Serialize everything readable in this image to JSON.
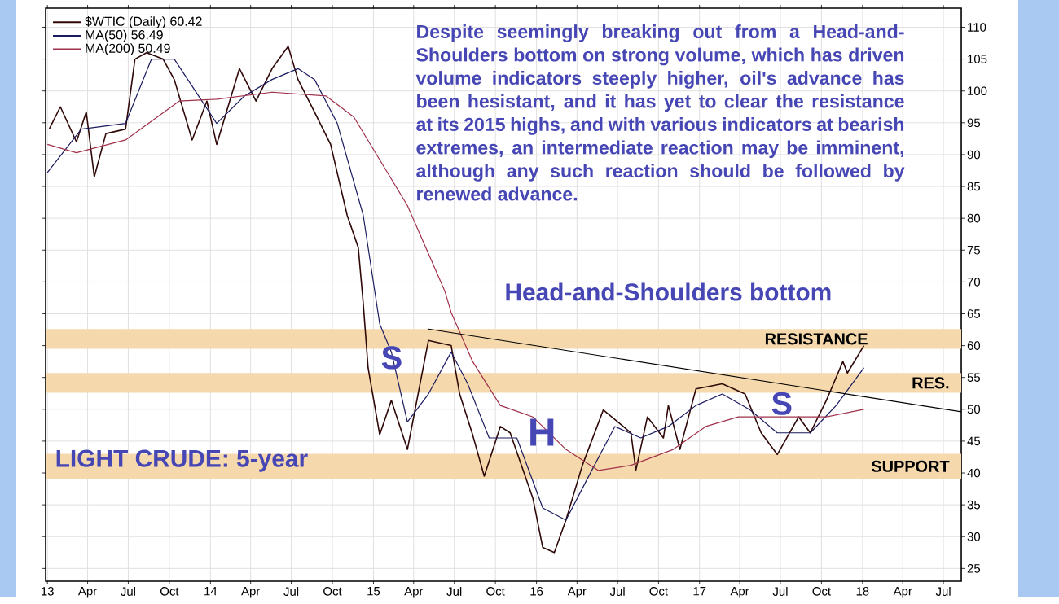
{
  "chart_data": {
    "type": "line",
    "series": [
      {
        "name": "$WTIC (Daily) 60.42",
        "color": "#300808",
        "x": [
          "2013-01-05",
          "2013-01-30",
          "2013-03-07",
          "2013-03-29",
          "2013-04-16",
          "2013-05-12",
          "2013-06-25",
          "2013-07-16",
          "2013-08-11",
          "2013-09-17",
          "2013-10-12",
          "2013-11-21",
          "2013-12-24",
          "2014-01-15",
          "2014-03-07",
          "2014-04-13",
          "2014-05-19",
          "2014-06-24",
          "2014-07-16",
          "2014-08-22",
          "2014-09-27",
          "2014-11-03",
          "2014-11-28",
          "2014-12-09",
          "2014-12-20",
          "2015-01-15",
          "2015-02-10",
          "2015-03-18",
          "2015-05-04",
          "2015-06-24",
          "2015-07-13",
          "2015-08-11",
          "2015-09-06",
          "2015-10-12",
          "2015-11-03",
          "2015-12-24",
          "2016-01-15",
          "2016-02-10",
          "2016-03-07",
          "2016-04-13",
          "2016-05-30",
          "2016-07-31",
          "2016-08-11",
          "2016-09-06",
          "2016-10-12",
          "2016-10-23",
          "2016-11-18",
          "2016-12-24",
          "2017-02-21",
          "2017-04-13",
          "2017-05-19",
          "2017-06-24",
          "2017-08-11",
          "2017-09-06",
          "2017-10-12",
          "2017-11-18",
          "2017-11-28",
          "2018-01-04"
        ],
        "values": [
          94,
          97.5,
          92,
          96.7,
          86.5,
          93.3,
          94,
          105,
          106,
          105,
          101.8,
          92.3,
          98.4,
          91.6,
          103.5,
          98.4,
          103.5,
          107,
          101.8,
          96.7,
          91.6,
          80.5,
          75.4,
          66.7,
          56.5,
          46,
          51.4,
          43.7,
          60.8,
          60,
          52.4,
          46,
          39.5,
          47.3,
          46.3,
          36,
          28.3,
          27.5,
          32.6,
          41.2,
          49.9,
          46.3,
          40.4,
          48.8,
          45.5,
          50.6,
          43.7,
          53.2,
          54,
          52.4,
          46.3,
          42.9,
          48.8,
          46.3,
          51.4,
          57.5,
          55.7,
          60
        ]
      },
      {
        "name": "MA(50) 56.49",
        "color": "#1a1a5e",
        "x": [
          "2013-01-01",
          "2013-03-18",
          "2013-06-25",
          "2013-08-22",
          "2013-10-12",
          "2013-11-28",
          "2014-01-15",
          "2014-03-18",
          "2014-05-19",
          "2014-07-16",
          "2014-08-22",
          "2014-10-12",
          "2014-12-09",
          "2015-01-15",
          "2015-02-10",
          "2015-03-18",
          "2015-05-04",
          "2015-06-24",
          "2015-07-31",
          "2015-09-17",
          "2015-11-18",
          "2016-01-15",
          "2016-03-07",
          "2016-05-04",
          "2016-06-25",
          "2016-08-22",
          "2016-10-23",
          "2016-12-24",
          "2017-02-21",
          "2017-04-24",
          "2017-06-24",
          "2017-09-06",
          "2017-11-03",
          "2018-01-04"
        ],
        "values": [
          87.2,
          94,
          94.9,
          105,
          105,
          100,
          94.9,
          99.2,
          101.8,
          103.5,
          101.8,
          94.9,
          80.5,
          63.4,
          59,
          48,
          52.4,
          59,
          54,
          45.5,
          45.5,
          34.5,
          32.6,
          40.4,
          47.3,
          45.5,
          47.3,
          50.6,
          52.4,
          49.9,
          46.3,
          46.3,
          50.6,
          56.5
        ]
      },
      {
        "name": "MA(200) 50.49",
        "color": "#a0304a",
        "x": [
          "2013-01-01",
          "2013-03-07",
          "2013-06-25",
          "2013-10-23",
          "2014-01-15",
          "2014-05-19",
          "2014-09-17",
          "2014-11-18",
          "2015-03-18",
          "2015-06-10",
          "2015-06-24",
          "2015-08-11",
          "2015-10-12",
          "2015-12-24",
          "2016-03-07",
          "2016-05-19",
          "2016-07-31",
          "2016-11-03",
          "2017-01-15",
          "2017-03-29",
          "2017-06-24",
          "2017-10-12",
          "2018-01-04"
        ],
        "values": [
          91.6,
          90.3,
          92.3,
          98.4,
          98.7,
          99.8,
          99.2,
          95.9,
          82,
          68.5,
          65.2,
          57.5,
          50.6,
          48.8,
          43.7,
          40.4,
          41.2,
          43.7,
          47.3,
          48.8,
          48.8,
          48.8,
          50
        ]
      },
      {
        "color": "#000000",
        "x": [
          "2015-05-04",
          "2018-08-10"
        ],
        "values": [
          62.6,
          49.6
        ]
      }
    ],
    "xlim": [
      "2012-12-28",
      "2018-08-10"
    ],
    "ylim": [
      23,
      113
    ],
    "xticks": [
      {
        "value": "2013-01-01",
        "label": "13"
      },
      {
        "value": "2013-04-01",
        "label": "Apr"
      },
      {
        "value": "2013-07-01",
        "label": "Jul"
      },
      {
        "value": "2013-10-01",
        "label": "Oct"
      },
      {
        "value": "2014-01-01",
        "label": "14"
      },
      {
        "value": "2014-04-01",
        "label": "Apr"
      },
      {
        "value": "2014-07-01",
        "label": "Jul"
      },
      {
        "value": "2014-10-01",
        "label": "Oct"
      },
      {
        "value": "2015-01-01",
        "label": "15"
      },
      {
        "value": "2015-04-01",
        "label": "Apr"
      },
      {
        "value": "2015-07-01",
        "label": "Jul"
      },
      {
        "value": "2015-10-01",
        "label": "Oct"
      },
      {
        "value": "2016-01-01",
        "label": "16"
      },
      {
        "value": "2016-04-01",
        "label": "Apr"
      },
      {
        "value": "2016-07-01",
        "label": "Jul"
      },
      {
        "value": "2016-10-01",
        "label": "Oct"
      },
      {
        "value": "2017-01-01",
        "label": "17"
      },
      {
        "value": "2017-04-01",
        "label": "Apr"
      },
      {
        "value": "2017-07-01",
        "label": "Jul"
      },
      {
        "value": "2017-10-01",
        "label": "Oct"
      },
      {
        "value": "2018-01-01",
        "label": "18"
      },
      {
        "value": "2018-04-01",
        "label": "Apr"
      },
      {
        "value": "2018-07-01",
        "label": "Jul"
      }
    ],
    "yticks": [
      25,
      30,
      35,
      40,
      45,
      50,
      55,
      60,
      65,
      70,
      75,
      80,
      85,
      90,
      95,
      100,
      105,
      110
    ],
    "grid": true,
    "legend": "top left",
    "bands": [
      {
        "axis": "y",
        "from": 59.5,
        "to": 62.6,
        "label": "RESISTANCE",
        "color": "#f5d9ad"
      },
      {
        "axis": "y",
        "from": 52.6,
        "to": 55.7,
        "label": "RES.",
        "color": "#f5d9ad"
      },
      {
        "axis": "y",
        "from": 39.1,
        "to": 43,
        "label": "SUPPORT",
        "color": "#f5d9ad"
      }
    ],
    "annotations": [
      "Despite seemingly breaking out from a Head-and-Shoulders bottom on strong volume, which has driven volume indicators steeply higher, oil's advance has been hesistant, and it has yet to clear the resistance at its 2015 highs, and with various indicators at bearish extremes, an intermediate reaction may be imminent, although any such reaction should be followed by renewed advance.",
      "Head-and-Shoulders bottom",
      "LIGHT CRUDE: 5-year",
      "S",
      "H",
      "S"
    ]
  }
}
